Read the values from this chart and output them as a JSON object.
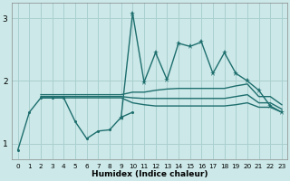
{
  "bg_color": "#cce8e8",
  "grid_color": "#aacfcf",
  "line_color": "#1e6e6e",
  "xlabel": "Humidex (Indice chaleur)",
  "xlim": [
    -0.5,
    23.5
  ],
  "ylim": [
    0.75,
    3.25
  ],
  "yticks": [
    1,
    2,
    3
  ],
  "xticks": [
    0,
    1,
    2,
    3,
    4,
    5,
    6,
    7,
    8,
    9,
    10,
    11,
    12,
    13,
    14,
    15,
    16,
    17,
    18,
    19,
    20,
    21,
    22,
    23
  ],
  "line_jagged_x": [
    0,
    1,
    2,
    3,
    4,
    5,
    6,
    7,
    8,
    9,
    10
  ],
  "line_jagged_y": [
    0.9,
    1.5,
    1.73,
    1.73,
    1.73,
    1.35,
    1.08,
    1.2,
    1.22,
    1.42,
    1.5
  ],
  "line_flat_low_x": [
    2,
    3,
    4,
    5,
    6,
    7,
    8,
    9,
    10,
    11,
    12,
    13,
    14,
    15,
    16,
    17,
    18,
    19,
    20,
    21,
    22,
    23
  ],
  "line_flat_low_y": [
    1.73,
    1.73,
    1.73,
    1.73,
    1.73,
    1.73,
    1.73,
    1.73,
    1.65,
    1.62,
    1.6,
    1.6,
    1.6,
    1.6,
    1.6,
    1.6,
    1.6,
    1.62,
    1.65,
    1.58,
    1.58,
    1.5
  ],
  "line_flat_high_x": [
    2,
    3,
    4,
    5,
    6,
    7,
    8,
    9,
    10,
    11,
    12,
    13,
    14,
    15,
    16,
    17,
    18,
    19,
    20,
    21,
    22,
    23
  ],
  "line_flat_high_y": [
    1.78,
    1.78,
    1.78,
    1.78,
    1.78,
    1.78,
    1.78,
    1.78,
    1.82,
    1.82,
    1.85,
    1.87,
    1.88,
    1.88,
    1.88,
    1.88,
    1.88,
    1.92,
    1.95,
    1.75,
    1.75,
    1.62
  ],
  "line_mean_x": [
    2,
    3,
    4,
    5,
    6,
    7,
    8,
    9,
    10,
    11,
    12,
    13,
    14,
    15,
    16,
    17,
    18,
    19,
    20,
    21,
    22,
    23
  ],
  "line_mean_y": [
    1.75,
    1.75,
    1.75,
    1.75,
    1.75,
    1.75,
    1.75,
    1.75,
    1.73,
    1.72,
    1.72,
    1.72,
    1.72,
    1.72,
    1.72,
    1.72,
    1.72,
    1.75,
    1.78,
    1.65,
    1.65,
    1.55
  ],
  "spike_x": [
    9,
    10,
    11,
    12,
    13,
    14,
    15,
    16,
    17,
    18,
    19,
    20,
    21,
    22,
    23
  ],
  "spike_y": [
    1.42,
    3.08,
    1.98,
    2.45,
    2.02,
    2.6,
    2.55,
    2.62,
    2.12,
    2.45,
    2.12,
    2.0,
    1.85,
    1.6,
    1.5
  ]
}
